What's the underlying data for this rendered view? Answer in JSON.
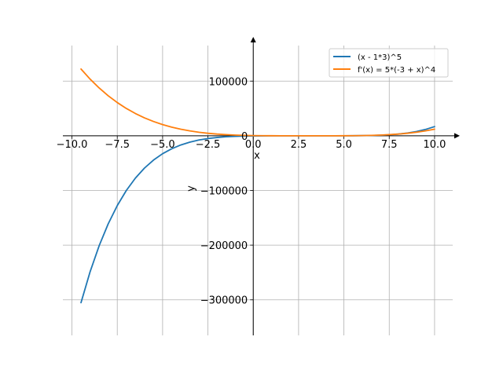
{
  "chart_data": {
    "type": "line",
    "title": "",
    "xlabel": "x",
    "ylabel": "y",
    "xlim": [
      -10.5,
      11.0
    ],
    "ylim": [
      -365000,
      165000
    ],
    "grid": true,
    "legend_placement": "top-right",
    "x_ticks": [
      {
        "value": -10.0,
        "label": "−10.0"
      },
      {
        "value": -7.5,
        "label": "−7.5"
      },
      {
        "value": -5.0,
        "label": "−5.0"
      },
      {
        "value": -2.5,
        "label": "−2.5"
      },
      {
        "value": 0.0,
        "label": "0.0"
      },
      {
        "value": 2.5,
        "label": "2.5"
      },
      {
        "value": 5.0,
        "label": "5.0"
      },
      {
        "value": 7.5,
        "label": "7.5"
      },
      {
        "value": 10.0,
        "label": "10.0"
      }
    ],
    "y_ticks": [
      {
        "value": 100000,
        "label": "100000"
      },
      {
        "value": 0,
        "label": "0"
      },
      {
        "value": -100000,
        "label": "−100000"
      },
      {
        "value": -200000,
        "label": "−200000"
      },
      {
        "value": -300000,
        "label": "−300000"
      }
    ],
    "series": [
      {
        "name": "(x - 1*3)^5",
        "color": "#1f77b4",
        "x": [
          -9.5,
          -9.0,
          -8.5,
          -8.0,
          -7.5,
          -7.0,
          -6.5,
          -6.0,
          -5.5,
          -5.0,
          -4.5,
          -4.0,
          -3.5,
          -3.0,
          -2.5,
          -2.0,
          -1.5,
          -1.0,
          -0.5,
          0.0,
          0.5,
          1.0,
          1.5,
          2.0,
          2.5,
          3.0,
          3.5,
          4.0,
          4.5,
          5.0,
          5.5,
          6.0,
          6.5,
          7.0,
          7.5,
          8.0,
          8.5,
          9.0,
          9.5,
          10.0
        ],
        "y": [
          -305176,
          -248832,
          -201136,
          -161051,
          -127628,
          -100000,
          -77378,
          -59049,
          -44371,
          -32768,
          -23730,
          -16807,
          -11603,
          -7776,
          -5033,
          -3125,
          -1845,
          -1024,
          -525,
          -243,
          -98,
          -32,
          -8,
          -1,
          0,
          0,
          0,
          1,
          8,
          32,
          98,
          243,
          525,
          1024,
          1845,
          3125,
          5033,
          7776,
          11603,
          16807
        ]
      },
      {
        "name": "f'(x) = 5*(-3 + x)^4",
        "color": "#ff7f0e",
        "x": [
          -9.5,
          -9.0,
          -8.5,
          -8.0,
          -7.5,
          -7.0,
          -6.5,
          -6.0,
          -5.5,
          -5.0,
          -4.5,
          -4.0,
          -3.5,
          -3.0,
          -2.5,
          -2.0,
          -1.5,
          -1.0,
          -0.5,
          0.0,
          0.5,
          1.0,
          1.5,
          2.0,
          2.5,
          3.0,
          3.5,
          4.0,
          4.5,
          5.0,
          5.5,
          6.0,
          6.5,
          7.0,
          7.5,
          8.0,
          8.5,
          9.0,
          9.5,
          10.0
        ],
        "y": [
          122070,
          103680,
          87450,
          73205,
          60775,
          50000,
          40725,
          32805,
          26100,
          20480,
          15820,
          12005,
          8925,
          6480,
          4575,
          3125,
          2050,
          1280,
          750,
          405,
          195,
          80,
          25,
          5,
          0,
          0,
          0,
          5,
          25,
          80,
          195,
          405,
          750,
          1280,
          2050,
          3125,
          4575,
          6480,
          8925,
          12005
        ]
      }
    ]
  }
}
